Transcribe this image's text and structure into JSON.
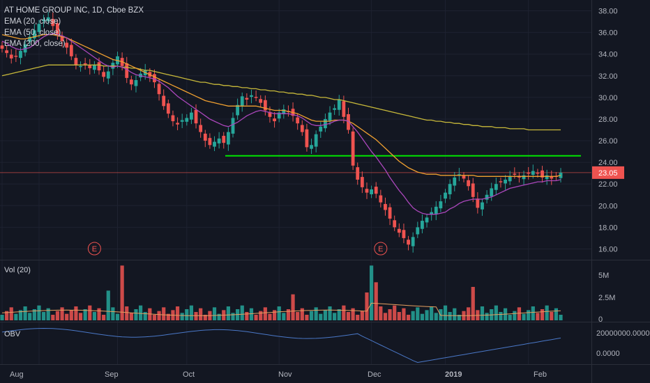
{
  "chart": {
    "title": "AT HOME GROUP INC, 1D, Cboe BZX",
    "indicators": [
      "EMA (20, close)",
      "EMA (50, close)",
      "EMA (200, close)"
    ],
    "volume_label": "Vol (20)",
    "obv_label": "OBV",
    "last_price_label": "23.05",
    "earnings_marker": "E"
  },
  "colors": {
    "background": "#131722",
    "up": "#26a69a",
    "down": "#ef5350",
    "ema20": "#ab47bc",
    "ema50": "#f0a030",
    "ema200": "#c8b93a",
    "hline": "#00e600",
    "obv": "#4a78c8",
    "last_price_bg": "#ef5350"
  },
  "chart_data": {
    "type": "candlestick",
    "x_tick_labels": [
      "Aug",
      "Sep",
      "Oct",
      "Nov",
      "Dec",
      "2019",
      "Feb"
    ],
    "price_axis": {
      "ylim": [
        15,
        39
      ],
      "ticks": [
        "38.00",
        "36.00",
        "34.00",
        "32.00",
        "30.00",
        "28.00",
        "26.00",
        "24.00",
        "22.00",
        "20.00",
        "18.00",
        "16.00"
      ]
    },
    "volume_axis": {
      "ylim": [
        0,
        6
      ],
      "ticks": [
        "5M",
        "2.5M",
        "0"
      ]
    },
    "obv_axis": {
      "ylim": [
        -40000000,
        28000000
      ],
      "ticks": [
        "20000000.0000",
        "0.0000"
      ]
    },
    "last_price": 23.05,
    "horizontal_line_level": 24.6,
    "closes": [
      34.5,
      34.1,
      33.6,
      33.8,
      34.3,
      34.9,
      35.6,
      36.2,
      36.8,
      37.2,
      37.4,
      36.6,
      35.8,
      35.2,
      34.6,
      33.8,
      33.0,
      32.9,
      33.1,
      32.7,
      33.0,
      32.5,
      31.9,
      32.4,
      33.2,
      33.8,
      32.9,
      31.8,
      31.2,
      31.6,
      32.2,
      32.5,
      31.9,
      31.4,
      30.3,
      29.2,
      28.5,
      27.8,
      27.5,
      27.9,
      28.1,
      28.6,
      27.6,
      26.8,
      26.0,
      25.6,
      25.9,
      26.2,
      25.8,
      26.8,
      28.1,
      29.3,
      30.1,
      29.8,
      30.2,
      30.0,
      29.5,
      28.8,
      28.2,
      27.8,
      28.6,
      28.9,
      28.7,
      28.3,
      27.6,
      26.8,
      25.4,
      25.6,
      26.6,
      27.3,
      28.0,
      28.6,
      29.0,
      29.8,
      28.2,
      27.0,
      23.7,
      22.4,
      21.7,
      21.2,
      21.5,
      21.1,
      20.3,
      19.6,
      18.8,
      18.0,
      17.5,
      17.0,
      16.4,
      17.1,
      18.0,
      18.6,
      18.9,
      19.4,
      19.9,
      20.4,
      21.2,
      22.0,
      22.6,
      22.9,
      22.5,
      21.8,
      20.8,
      19.8,
      20.3,
      21.0,
      21.6,
      22.0,
      22.2,
      22.4,
      22.7,
      22.9,
      22.6,
      22.8,
      23.0,
      23.2,
      23.0,
      22.6,
      22.8,
      22.5,
      22.7,
      23.05
    ],
    "ema20": [
      35.2,
      35.0,
      34.7,
      34.5,
      34.4,
      34.5,
      34.6,
      34.9,
      35.3,
      35.6,
      35.8,
      35.9,
      35.8,
      35.7,
      35.5,
      35.2,
      34.9,
      34.6,
      34.3,
      34.0,
      33.7,
      33.4,
      33.1,
      32.9,
      32.8,
      32.9,
      32.8,
      32.6,
      32.3,
      32.1,
      32.0,
      31.9,
      31.8,
      31.7,
      31.5,
      31.2,
      30.9,
      30.5,
      30.1,
      29.8,
      29.5,
      29.2,
      28.9,
      28.6,
      28.3,
      28.0,
      27.8,
      27.6,
      27.4,
      27.3,
      27.5,
      27.7,
      28.0,
      28.3,
      28.5,
      28.7,
      28.8,
      28.7,
      28.6,
      28.5,
      28.5,
      28.5,
      28.5,
      28.4,
      28.3,
      28.1,
      27.8,
      27.5,
      27.4,
      27.4,
      27.5,
      27.6,
      27.8,
      27.9,
      27.9,
      27.8,
      27.3,
      26.8,
      26.2,
      25.6,
      25.0,
      24.5,
      23.9,
      23.3,
      22.6,
      22.0,
      21.4,
      20.9,
      20.3,
      19.8,
      19.5,
      19.3,
      19.2,
      19.2,
      19.2,
      19.3,
      19.4,
      19.7,
      19.9,
      20.2,
      20.4,
      20.5,
      20.6,
      20.6,
      20.6,
      20.7,
      20.8,
      21.0,
      21.2,
      21.4,
      21.6,
      21.7,
      21.8,
      21.9,
      22.0,
      22.1,
      22.2,
      22.2,
      22.3,
      22.3,
      22.3,
      22.4
    ],
    "ema50": [
      35.8,
      35.7,
      35.6,
      35.5,
      35.4,
      35.4,
      35.5,
      35.6,
      35.7,
      35.8,
      35.8,
      35.8,
      35.7,
      35.6,
      35.5,
      35.3,
      35.1,
      34.9,
      34.7,
      34.5,
      34.3,
      34.1,
      33.9,
      33.7,
      33.5,
      33.4,
      33.3,
      33.1,
      32.9,
      32.7,
      32.5,
      32.3,
      32.1,
      31.9,
      31.7,
      31.5,
      31.3,
      31.1,
      30.9,
      30.7,
      30.5,
      30.3,
      30.1,
      29.9,
      29.7,
      29.6,
      29.5,
      29.4,
      29.3,
      29.2,
      29.2,
      29.2,
      29.2,
      29.2,
      29.2,
      29.2,
      29.1,
      29.0,
      28.9,
      28.8,
      28.8,
      28.8,
      28.7,
      28.6,
      28.5,
      28.3,
      28.1,
      27.9,
      27.8,
      27.8,
      27.8,
      27.8,
      27.9,
      27.9,
      27.9,
      27.8,
      27.6,
      27.3,
      27.0,
      26.7,
      26.4,
      26.1,
      25.7,
      25.3,
      24.9,
      24.5,
      24.1,
      23.8,
      23.5,
      23.3,
      23.1,
      23.0,
      22.9,
      22.9,
      22.9,
      22.8,
      22.8,
      22.8,
      22.8,
      22.8,
      22.8,
      22.8,
      22.8,
      22.7,
      22.7,
      22.7,
      22.7,
      22.7,
      22.7,
      22.7,
      22.7,
      22.7,
      22.7,
      22.7,
      22.7,
      22.7,
      22.7,
      22.7,
      22.7,
      22.7,
      22.7,
      22.8
    ],
    "ema200": [
      32.0,
      32.1,
      32.2,
      32.3,
      32.4,
      32.5,
      32.6,
      32.7,
      32.8,
      32.9,
      33.0,
      33.0,
      33.0,
      33.0,
      33.0,
      33.0,
      33.0,
      33.0,
      33.0,
      33.0,
      33.0,
      33.0,
      32.9,
      32.9,
      32.9,
      32.9,
      32.8,
      32.8,
      32.7,
      32.7,
      32.6,
      32.5,
      32.5,
      32.4,
      32.3,
      32.2,
      32.1,
      32.0,
      31.9,
      31.8,
      31.7,
      31.6,
      31.5,
      31.4,
      31.4,
      31.3,
      31.2,
      31.2,
      31.1,
      31.1,
      31.0,
      31.0,
      30.9,
      30.9,
      30.8,
      30.8,
      30.7,
      30.7,
      30.6,
      30.6,
      30.5,
      30.5,
      30.4,
      30.4,
      30.3,
      30.3,
      30.2,
      30.2,
      30.1,
      30.0,
      30.0,
      29.9,
      29.8,
      29.8,
      29.7,
      29.6,
      29.5,
      29.4,
      29.3,
      29.2,
      29.1,
      29.0,
      28.9,
      28.8,
      28.7,
      28.6,
      28.5,
      28.4,
      28.3,
      28.2,
      28.1,
      28.0,
      27.9,
      27.9,
      27.8,
      27.8,
      27.7,
      27.7,
      27.6,
      27.6,
      27.5,
      27.5,
      27.4,
      27.4,
      27.3,
      27.3,
      27.3,
      27.2,
      27.2,
      27.2,
      27.1,
      27.1,
      27.1,
      27.1,
      27.0,
      27.0,
      27.0,
      27.0,
      27.0,
      27.0,
      27.0,
      27.0
    ]
  }
}
